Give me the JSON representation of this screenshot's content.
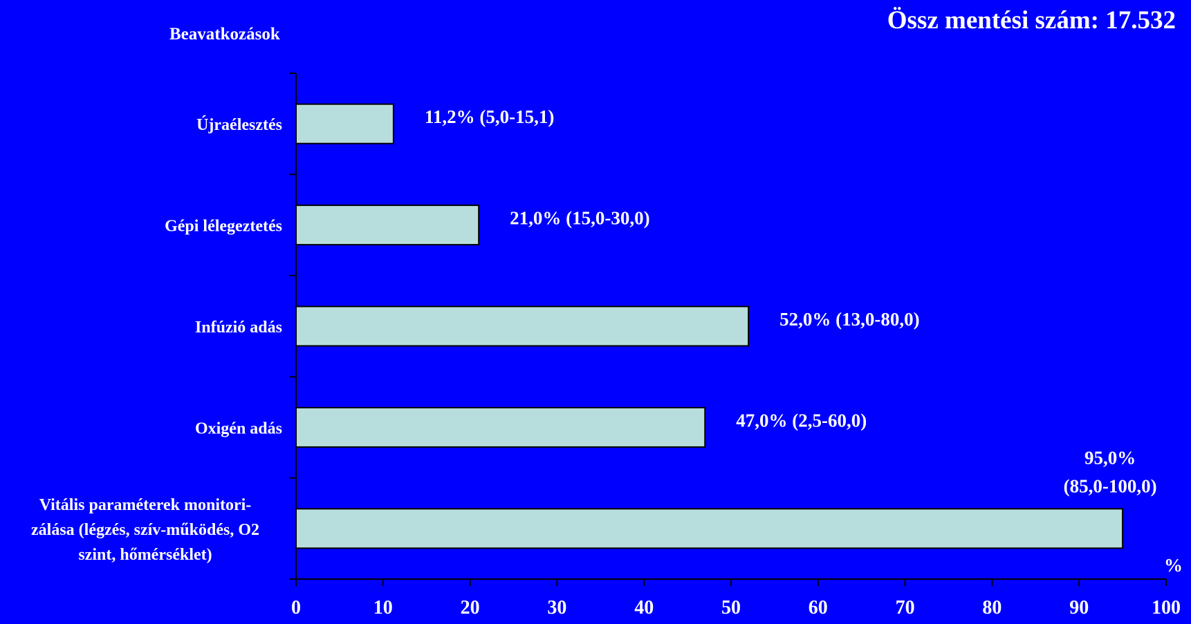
{
  "chart_data": {
    "type": "bar",
    "orientation": "horizontal",
    "title": "Össz mentési szám: 17.532",
    "ylabel": "Beavatkozások",
    "xlabel": "%",
    "xlim": [
      0,
      100
    ],
    "x_ticks": [
      "0",
      "10",
      "20",
      "30",
      "40",
      "50",
      "60",
      "70",
      "80",
      "90",
      "100"
    ],
    "grid": false,
    "bar_color": "#B8DDDD",
    "background_color": "#0000FF",
    "categories": [
      {
        "label_lines": [
          "Újraélesztés"
        ],
        "value": 11.2,
        "annotation": [
          "11,2% (5,0-15,1)"
        ]
      },
      {
        "label_lines": [
          "Gépi lélegeztetés"
        ],
        "value": 21.0,
        "annotation": [
          "21,0% (15,0-30,0)"
        ]
      },
      {
        "label_lines": [
          "Infúzió adás"
        ],
        "value": 52.0,
        "annotation": [
          "52,0% (13,0-80,0)"
        ]
      },
      {
        "label_lines": [
          "Oxigén adás"
        ],
        "value": 47.0,
        "annotation": [
          "47,0% (2,5-60,0)"
        ]
      },
      {
        "label_lines": [
          "Vitális paraméterek monitori-",
          "zálása (légzés, szív-működés, O2",
          "szint, hőmérséklet)"
        ],
        "value": 95.0,
        "annotation": [
          "95,0%",
          "(85,0-100,0)"
        ]
      }
    ]
  }
}
